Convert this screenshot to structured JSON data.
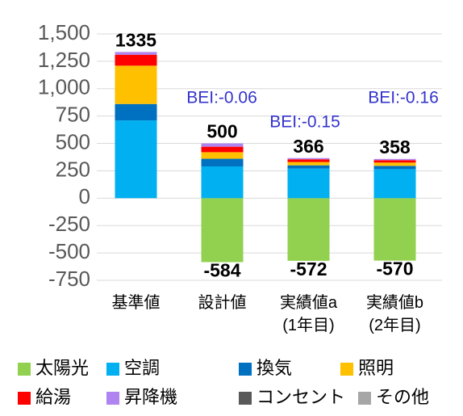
{
  "chart_data": {
    "type": "stacked_bar",
    "categories": [
      "基準値",
      "設計値",
      "実績値a\n(1年目)",
      "実績値b\n(2年目)"
    ],
    "series": [
      {
        "name": "太陽光",
        "color": "#92d050",
        "values": [
          null,
          -584,
          -572,
          -570
        ]
      },
      {
        "name": "空調",
        "color": "#00b0f0",
        "values": [
          710,
          290,
          270,
          265
        ]
      },
      {
        "name": "換気",
        "color": "#0070c0",
        "values": [
          150,
          70,
          30,
          30
        ]
      },
      {
        "name": "照明",
        "color": "#ffc000",
        "values": [
          350,
          60,
          30,
          30
        ]
      },
      {
        "name": "給湯",
        "color": "#ff0000",
        "values": [
          100,
          50,
          25,
          22
        ]
      },
      {
        "name": "昇降機",
        "color": "#b084f0",
        "values": [
          25,
          30,
          11,
          11
        ]
      },
      {
        "name": "コンセント",
        "color": "#595959",
        "values": [
          0,
          0,
          0,
          0
        ]
      },
      {
        "name": "その他",
        "color": "#a6a6a6",
        "values": [
          0,
          0,
          0,
          0
        ]
      }
    ],
    "totals": [
      1335,
      500,
      366,
      358
    ],
    "annotations": [
      "BEI:-0.06",
      "BEI:-0.15",
      "BEI:-0.16"
    ],
    "ylim": [
      -750,
      1500
    ],
    "yticks": [
      -750,
      -500,
      -250,
      0,
      250,
      500,
      750,
      {
        "value": 1000,
        "label": "1,000"
      },
      {
        "value": 1250,
        "label": "1,250"
      },
      {
        "value": 1500,
        "label": "1,500"
      }
    ],
    "grid": true
  }
}
